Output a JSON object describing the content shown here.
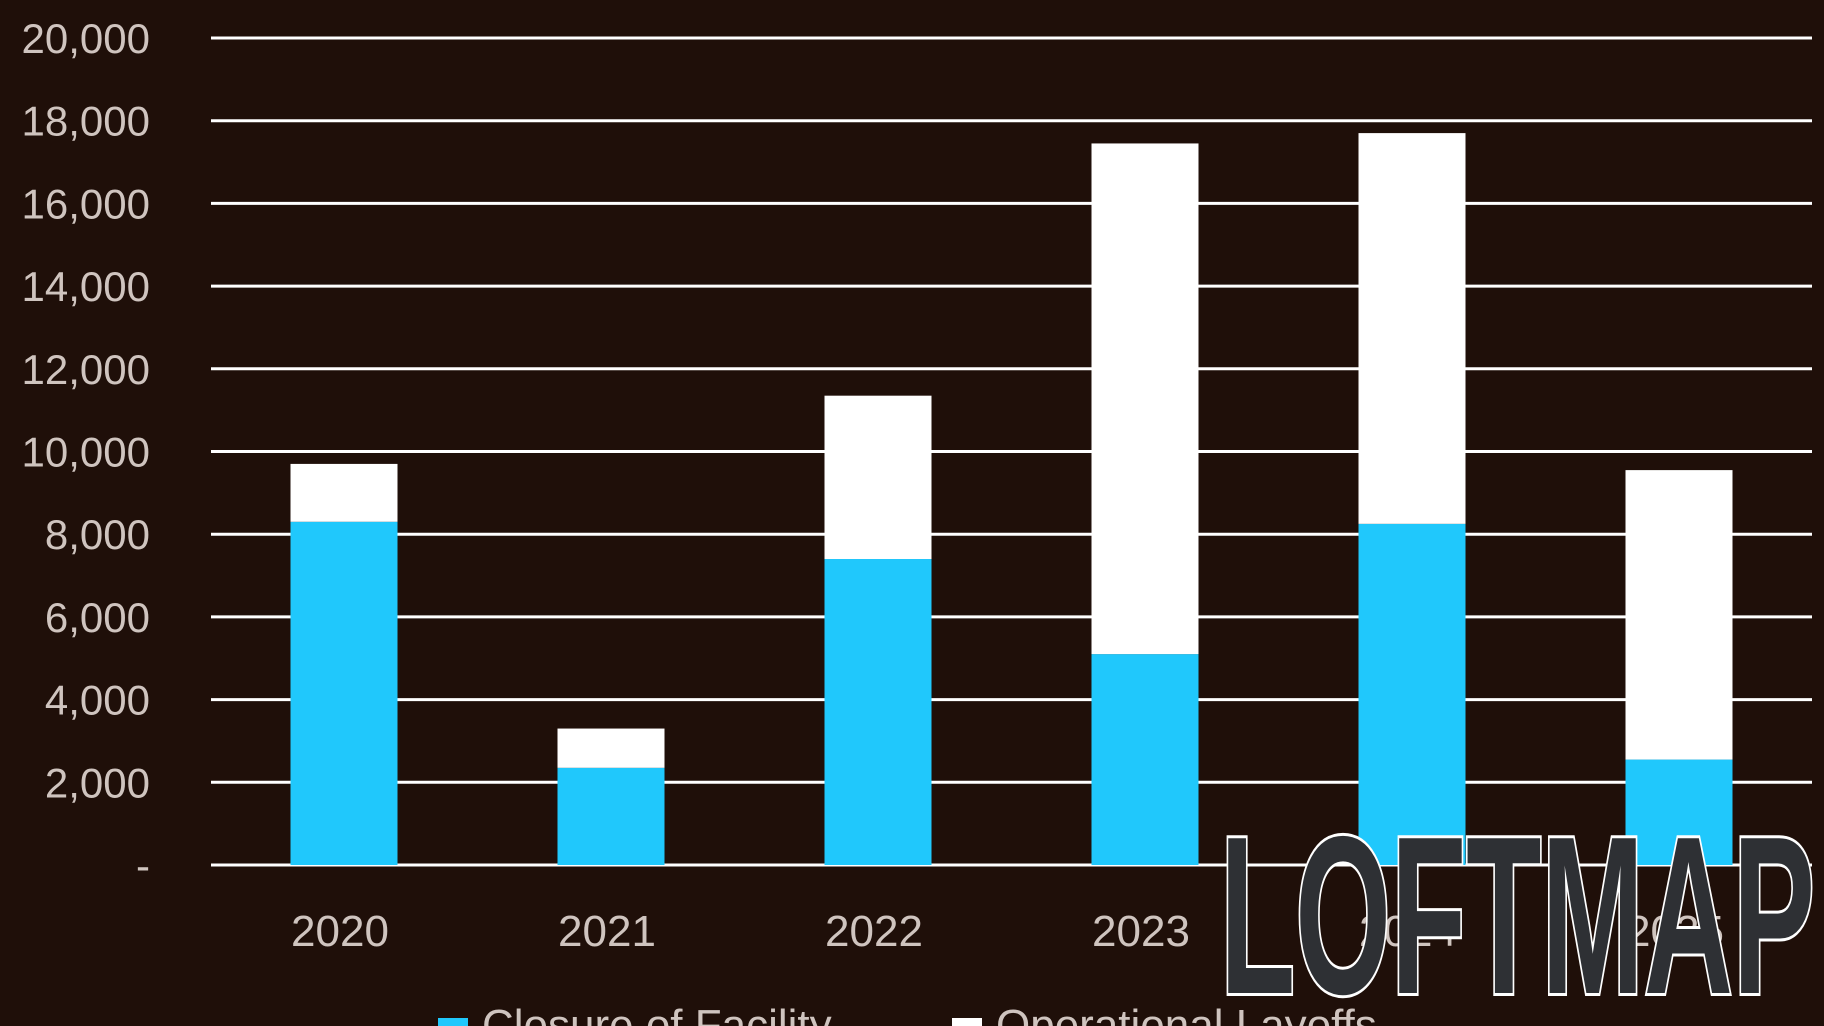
{
  "chart_data": {
    "type": "bar",
    "stacked": true,
    "categories": [
      "2020",
      "2021",
      "2022",
      "2023",
      "2024",
      "2025"
    ],
    "series": [
      {
        "name": "Closure of Facility",
        "color": "#20c8fc",
        "values": [
          8300,
          2350,
          7400,
          5100,
          8250,
          2550
        ]
      },
      {
        "name": "Operational Layoffs",
        "color": "#ffffff",
        "values": [
          1400,
          950,
          3950,
          12350,
          9450,
          7000
        ]
      }
    ],
    "ylim": [
      0,
      20000
    ],
    "yticks": [
      "-",
      "2,000",
      "4,000",
      "6,000",
      "8,000",
      "10,000",
      "12,000",
      "14,000",
      "16,000",
      "18,000",
      "20,000"
    ],
    "grid": true,
    "legend_position": "bottom",
    "colors": {
      "background": "#1f0f09",
      "grid": "#ffffff",
      "tick_text": "#cfc4bf"
    }
  },
  "watermark": {
    "text": "LOFTMAP"
  }
}
